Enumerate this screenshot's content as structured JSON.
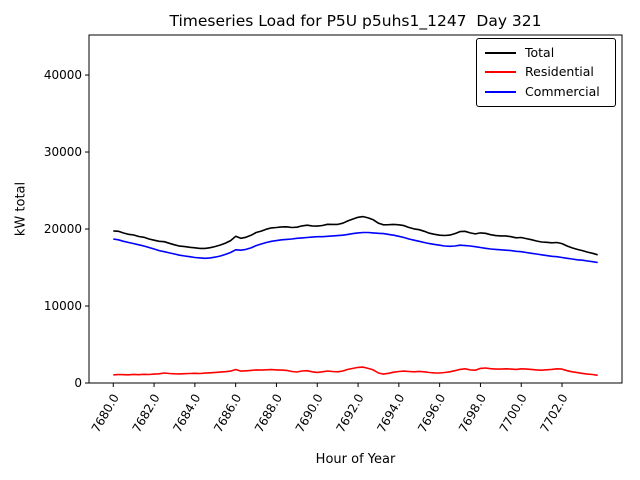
{
  "chart_data": {
    "type": "line",
    "title": "Timeseries Load for P5U p5uhs1_1247  Day 321",
    "xlabel": "Hour of Year",
    "ylabel": "kW total",
    "grid": false,
    "legend_position": "upper right",
    "xlim": [
      7678.81,
      7704.94
    ],
    "ylim": [
      0,
      45200
    ],
    "xticks": [
      7680,
      7682,
      7684,
      7686,
      7688,
      7690,
      7692,
      7694,
      7696,
      7698,
      7700,
      7702
    ],
    "xtick_labels": [
      "7680.0",
      "7682.0",
      "7684.0",
      "7686.0",
      "7688.0",
      "7690.0",
      "7692.0",
      "7694.0",
      "7696.0",
      "7698.0",
      "7700.0",
      "7702.0"
    ],
    "yticks": [
      0,
      10000,
      20000,
      30000,
      40000
    ],
    "ytick_labels": [
      "0",
      "10000",
      "20000",
      "30000",
      "40000"
    ],
    "x": [
      7680.0,
      7680.25,
      7680.5,
      7680.75,
      7681.0,
      7681.25,
      7681.5,
      7681.75,
      7682.0,
      7682.25,
      7682.5,
      7682.75,
      7683.0,
      7683.25,
      7683.5,
      7683.75,
      7684.0,
      7684.25,
      7684.5,
      7684.75,
      7685.0,
      7685.25,
      7685.5,
      7685.75,
      7686.0,
      7686.25,
      7686.5,
      7686.75,
      7687.0,
      7687.25,
      7687.5,
      7687.75,
      7688.0,
      7688.25,
      7688.5,
      7688.75,
      7689.0,
      7689.25,
      7689.5,
      7689.75,
      7690.0,
      7690.25,
      7690.5,
      7690.75,
      7691.0,
      7691.25,
      7691.5,
      7691.75,
      7692.0,
      7692.25,
      7692.5,
      7692.75,
      7693.0,
      7693.25,
      7693.5,
      7693.75,
      7694.0,
      7694.25,
      7694.5,
      7694.75,
      7695.0,
      7695.25,
      7695.5,
      7695.75,
      7696.0,
      7696.25,
      7696.5,
      7696.75,
      7697.0,
      7697.25,
      7697.5,
      7697.75,
      7698.0,
      7698.25,
      7698.5,
      7698.75,
      7699.0,
      7699.25,
      7699.5,
      7699.75,
      7700.0,
      7700.25,
      7700.5,
      7700.75,
      7701.0,
      7701.25,
      7701.5,
      7701.75,
      7702.0,
      7702.25,
      7702.5,
      7702.75,
      7703.0,
      7703.25,
      7703.5,
      7703.75
    ],
    "series": [
      {
        "name": "Total",
        "color": "#000000",
        "values": [
          19750,
          19700,
          19480,
          19310,
          19220,
          19030,
          18930,
          18700,
          18550,
          18400,
          18350,
          18140,
          17950,
          17780,
          17710,
          17630,
          17560,
          17480,
          17480,
          17570,
          17730,
          17920,
          18170,
          18490,
          19050,
          18800,
          18930,
          19190,
          19550,
          19730,
          19970,
          20140,
          20200,
          20270,
          20290,
          20200,
          20230,
          20410,
          20500,
          20410,
          20380,
          20460,
          20610,
          20600,
          20600,
          20760,
          21060,
          21300,
          21520,
          21610,
          21450,
          21200,
          20750,
          20550,
          20560,
          20600,
          20550,
          20450,
          20200,
          20010,
          19910,
          19700,
          19460,
          19310,
          19200,
          19160,
          19210,
          19400,
          19660,
          19700,
          19500,
          19360,
          19500,
          19450,
          19260,
          19150,
          19110,
          19100,
          19000,
          18860,
          18900,
          18750,
          18610,
          18450,
          18310,
          18270,
          18210,
          18250,
          18100,
          17800,
          17550,
          17350,
          17200,
          17000,
          16850,
          16650
        ]
      },
      {
        "name": "Residential",
        "color": "#ff0000",
        "values": [
          1050,
          1100,
          1080,
          1060,
          1120,
          1080,
          1130,
          1100,
          1150,
          1200,
          1300,
          1240,
          1200,
          1180,
          1210,
          1230,
          1260,
          1230,
          1280,
          1320,
          1380,
          1420,
          1470,
          1540,
          1750,
          1550,
          1580,
          1640,
          1700,
          1680,
          1720,
          1740,
          1700,
          1670,
          1640,
          1500,
          1430,
          1560,
          1600,
          1460,
          1380,
          1460,
          1560,
          1500,
          1450,
          1560,
          1760,
          1900,
          2020,
          2060,
          1900,
          1700,
          1300,
          1150,
          1260,
          1400,
          1500,
          1550,
          1500,
          1460,
          1510,
          1450,
          1360,
          1310,
          1300,
          1360,
          1460,
          1600,
          1760,
          1850,
          1700,
          1660,
          1900,
          1950,
          1860,
          1800,
          1810,
          1850,
          1800,
          1760,
          1850,
          1800,
          1760,
          1700,
          1660,
          1720,
          1760,
          1850,
          1800,
          1600,
          1450,
          1350,
          1250,
          1150,
          1100,
          1000
        ]
      },
      {
        "name": "Commercial",
        "color": "#0000ff",
        "values": [
          18700,
          18600,
          18400,
          18250,
          18100,
          17950,
          17800,
          17600,
          17400,
          17200,
          17050,
          16900,
          16750,
          16600,
          16500,
          16400,
          16300,
          16250,
          16200,
          16250,
          16350,
          16500,
          16700,
          16950,
          17300,
          17250,
          17350,
          17550,
          17850,
          18050,
          18250,
          18400,
          18500,
          18600,
          18650,
          18700,
          18800,
          18850,
          18900,
          18950,
          19000,
          19000,
          19050,
          19100,
          19150,
          19200,
          19300,
          19400,
          19500,
          19550,
          19550,
          19500,
          19450,
          19400,
          19300,
          19200,
          19050,
          18900,
          18700,
          18550,
          18400,
          18250,
          18100,
          18000,
          17900,
          17800,
          17750,
          17800,
          17900,
          17850,
          17800,
          17700,
          17600,
          17500,
          17400,
          17350,
          17300,
          17250,
          17200,
          17100,
          17050,
          16950,
          16850,
          16750,
          16650,
          16550,
          16450,
          16400,
          16300,
          16200,
          16100,
          16000,
          15950,
          15850,
          15750,
          15650
        ]
      }
    ]
  }
}
